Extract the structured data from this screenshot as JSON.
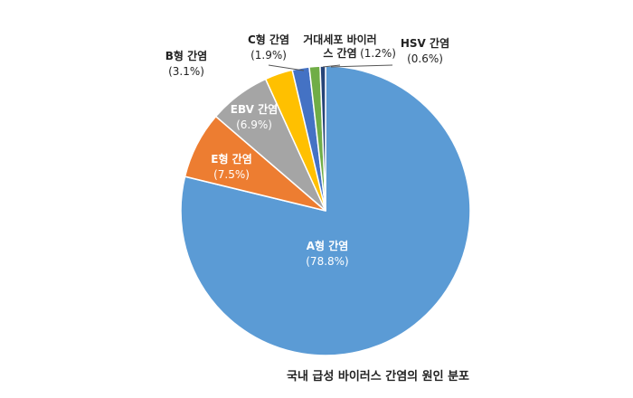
{
  "chart_data": {
    "type": "pie",
    "title": "국내 급성 바이러스 간염의 원인 분포",
    "slices": [
      {
        "name": "A형 간염",
        "value": 78.8,
        "label": "(78.8%)",
        "color": "#5b9bd5"
      },
      {
        "name": "E형 간염",
        "value": 7.5,
        "label": "(7.5%)",
        "color": "#ed7d31"
      },
      {
        "name": "EBV 간염",
        "value": 6.9,
        "label": "(6.9%)",
        "color": "#a5a5a5"
      },
      {
        "name": "B형 간염",
        "value": 3.1,
        "label": "(3.1%)",
        "color": "#ffc000"
      },
      {
        "name": "C형 간염",
        "value": 1.9,
        "label": "(1.9%)",
        "color": "#4472c4"
      },
      {
        "name": "거대세포 바이러스 간염",
        "name_lines": [
          "거대세포 바이러",
          "스 간염"
        ],
        "value": 1.2,
        "label": "(1.2%)",
        "color": "#70ad47"
      },
      {
        "name": "HSV 간염",
        "value": 0.6,
        "label": "(0.6%)",
        "color": "#264478"
      }
    ]
  }
}
